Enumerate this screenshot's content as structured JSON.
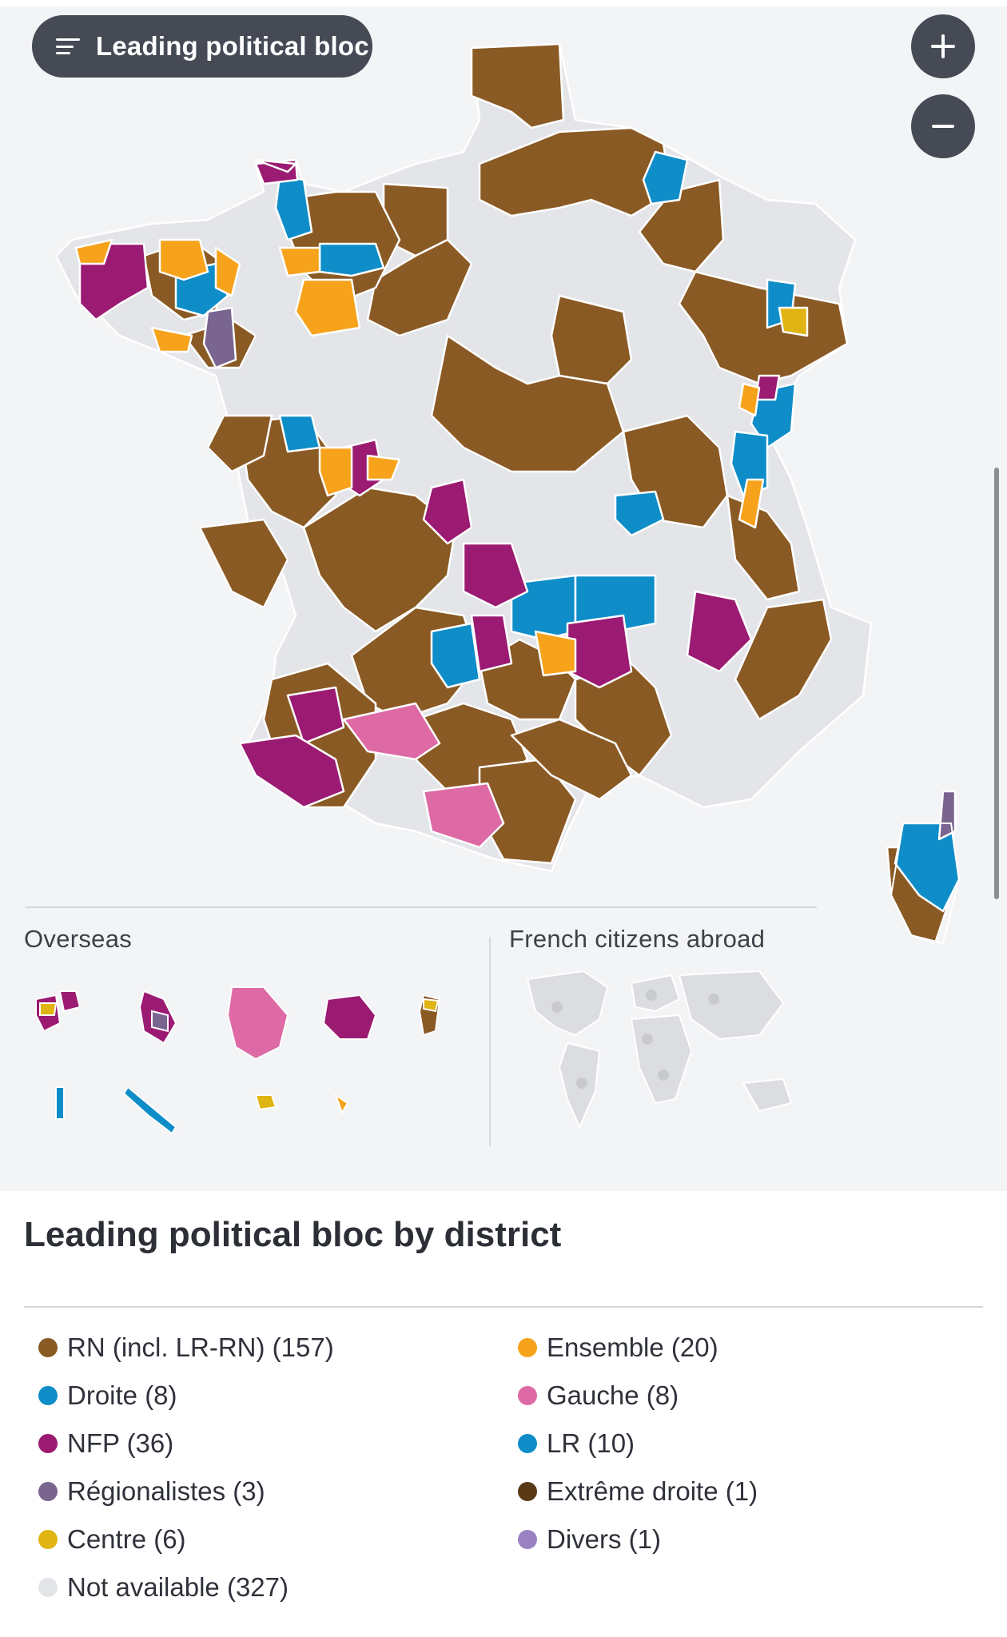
{
  "map_control": {
    "label": "Leading political bloc",
    "menu_icon": "menu-icon"
  },
  "zoom": {
    "in_icon": "plus-icon",
    "out_icon": "minus-icon"
  },
  "map_sections": {
    "overseas_label": "Overseas",
    "abroad_label": "French citizens abroad"
  },
  "colors": {
    "rn": "#8a5a24",
    "droite": "#0e8dc8",
    "nfp": "#9b1a72",
    "regionalistes": "#7a6490",
    "centre": "#e0b413",
    "not_available": "#e4e5e8",
    "ensemble": "#f7a21b",
    "gauche": "#dd6aa5",
    "lr": "#0e8dc8",
    "extreme_droite": "#5a3a16",
    "divers": "#9a82c2",
    "background": "#f3f4f6"
  },
  "legend": {
    "title": "Leading political bloc by district",
    "items": [
      {
        "label": "RN (incl. LR-RN) (157)",
        "color": "#8a5a24"
      },
      {
        "label": "Ensemble (20)",
        "color": "#f7a21b"
      },
      {
        "label": "Droite (8)",
        "color": "#0e8dc8"
      },
      {
        "label": "Gauche (8)",
        "color": "#dd6aa5"
      },
      {
        "label": "NFP (36)",
        "color": "#9b1a72"
      },
      {
        "label": "LR (10)",
        "color": "#0e8dc8"
      },
      {
        "label": "Régionalistes (3)",
        "color": "#7a6490"
      },
      {
        "label": "Extrême droite (1)",
        "color": "#5a3a16"
      },
      {
        "label": "Centre (6)",
        "color": "#e0b413"
      },
      {
        "label": "Divers (1)",
        "color": "#9a82c2"
      },
      {
        "label": "Not available (327)",
        "color": "#e4e5e8"
      }
    ]
  }
}
